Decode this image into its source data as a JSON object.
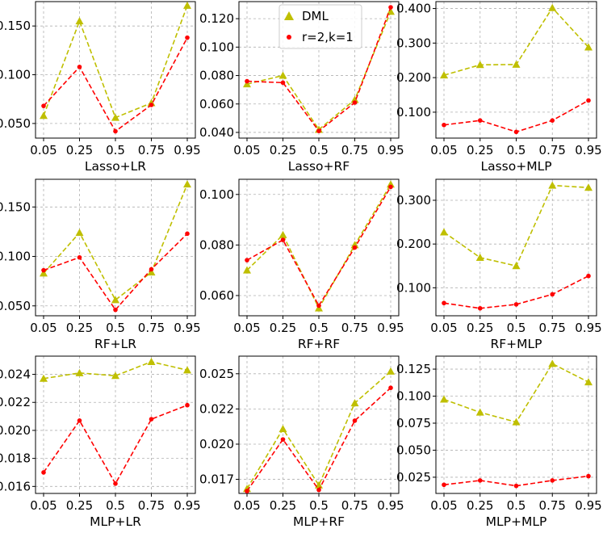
{
  "colors": {
    "dml": "#bfbf00",
    "rk": "#ff0000",
    "grid": "#b0b0b0"
  },
  "legend": {
    "placement": "top-left",
    "entries": [
      "DML",
      "r=2,k=1"
    ]
  },
  "chart_data": [
    {
      "type": "line",
      "xlabel": "Lasso+LR",
      "categories": [
        "0.05",
        "0.25",
        "0.5",
        "0.75",
        "0.95"
      ],
      "ylim": [
        0.035,
        0.175
      ],
      "yticks": [
        0.05,
        0.1,
        0.15
      ],
      "ytick_labels": [
        "0.050",
        "0.100",
        "0.150"
      ],
      "series": [
        {
          "name": "DML",
          "values": [
            0.058,
            0.155,
            0.056,
            0.071,
            0.171
          ]
        },
        {
          "name": "r=2,k=1",
          "values": [
            0.068,
            0.108,
            0.042,
            0.069,
            0.138
          ]
        }
      ]
    },
    {
      "type": "line",
      "xlabel": "Lasso+RF",
      "categories": [
        "0.05",
        "0.25",
        "0.5",
        "0.75",
        "0.95"
      ],
      "ylim": [
        0.036,
        0.132
      ],
      "yticks": [
        0.04,
        0.06,
        0.08,
        0.1,
        0.12
      ],
      "ytick_labels": [
        "0.040",
        "0.060",
        "0.080",
        "0.100",
        "0.120"
      ],
      "series": [
        {
          "name": "DML",
          "values": [
            0.074,
            0.08,
            0.042,
            0.063,
            0.125
          ]
        },
        {
          "name": "r=2,k=1",
          "values": [
            0.076,
            0.075,
            0.041,
            0.061,
            0.128
          ]
        }
      ]
    },
    {
      "type": "line",
      "xlabel": "Lasso+MLP",
      "categories": [
        "0.05",
        "0.25",
        "0.5",
        "0.75",
        "0.95"
      ],
      "ylim": [
        0.025,
        0.42
      ],
      "yticks": [
        0.1,
        0.2,
        0.3,
        0.4
      ],
      "ytick_labels": [
        "0.100",
        "0.200",
        "0.300",
        "0.400"
      ],
      "series": [
        {
          "name": "DML",
          "values": [
            0.207,
            0.237,
            0.238,
            0.402,
            0.288
          ]
        },
        {
          "name": "r=2,k=1",
          "values": [
            0.063,
            0.076,
            0.043,
            0.076,
            0.134
          ]
        }
      ]
    },
    {
      "type": "line",
      "xlabel": "RF+LR",
      "categories": [
        "0.05",
        "0.25",
        "0.5",
        "0.75",
        "0.95"
      ],
      "ylim": [
        0.04,
        0.178
      ],
      "yticks": [
        0.05,
        0.1,
        0.15
      ],
      "ytick_labels": [
        "0.050",
        "0.100",
        "0.150"
      ],
      "series": [
        {
          "name": "DML",
          "values": [
            0.083,
            0.124,
            0.056,
            0.084,
            0.173
          ]
        },
        {
          "name": "r=2,k=1",
          "values": [
            0.086,
            0.099,
            0.046,
            0.087,
            0.123
          ]
        }
      ]
    },
    {
      "type": "line",
      "xlabel": "RF+RF",
      "categories": [
        "0.05",
        "0.25",
        "0.5",
        "0.75",
        "0.95"
      ],
      "ylim": [
        0.052,
        0.106
      ],
      "yticks": [
        0.06,
        0.08,
        0.1
      ],
      "ytick_labels": [
        "0.060",
        "0.080",
        "0.100"
      ],
      "series": [
        {
          "name": "DML",
          "values": [
            0.07,
            0.084,
            0.055,
            0.08,
            0.104
          ]
        },
        {
          "name": "r=2,k=1",
          "values": [
            0.074,
            0.082,
            0.056,
            0.079,
            0.103
          ]
        }
      ]
    },
    {
      "type": "line",
      "xlabel": "RF+MLP",
      "categories": [
        "0.05",
        "0.25",
        "0.5",
        "0.75",
        "0.95"
      ],
      "ylim": [
        0.036,
        0.348
      ],
      "yticks": [
        0.1,
        0.2,
        0.3
      ],
      "ytick_labels": [
        "0.100",
        "0.200",
        "0.300"
      ],
      "series": [
        {
          "name": "DML",
          "values": [
            0.227,
            0.169,
            0.15,
            0.334,
            0.329
          ]
        },
        {
          "name": "r=2,k=1",
          "values": [
            0.065,
            0.053,
            0.062,
            0.085,
            0.127
          ]
        }
      ]
    },
    {
      "type": "line",
      "xlabel": "MLP+LR",
      "categories": [
        "0.05",
        "0.25",
        "0.5",
        "0.75",
        "0.95"
      ],
      "ylim": [
        0.0155,
        0.0253
      ],
      "yticks": [
        0.016,
        0.018,
        0.02,
        0.022,
        0.024
      ],
      "ytick_labels": [
        "0.016",
        "0.018",
        "0.020",
        "0.022",
        "0.024"
      ],
      "series": [
        {
          "name": "DML",
          "values": [
            0.0237,
            0.0241,
            0.0239,
            0.0249,
            0.0243
          ]
        },
        {
          "name": "r=2,k=1",
          "values": [
            0.017,
            0.0207,
            0.0162,
            0.0208,
            0.0218
          ]
        }
      ]
    },
    {
      "type": "line",
      "xlabel": "MLP+RF",
      "categories": [
        "0.05",
        "0.25",
        "0.5",
        "0.75",
        "0.95"
      ],
      "ylim": [
        0.0153,
        0.027
      ],
      "yticks": [
        0.0165,
        0.0195,
        0.0225,
        0.0255
      ],
      "ytick_labels": [
        "0.017",
        "0.020",
        "0.022",
        "0.025"
      ],
      "series": [
        {
          "name": "DML",
          "values": [
            0.0157,
            0.0208,
            0.016,
            0.023,
            0.0257
          ]
        },
        {
          "name": "r=2,k=1",
          "values": [
            0.0155,
            0.0199,
            0.0156,
            0.0215,
            0.0243
          ]
        }
      ]
    },
    {
      "type": "line",
      "xlabel": "MLP+MLP",
      "categories": [
        "0.05",
        "0.25",
        "0.5",
        "0.75",
        "0.95"
      ],
      "ylim": [
        0.01,
        0.137
      ],
      "yticks": [
        0.025,
        0.05,
        0.075,
        0.1,
        0.125
      ],
      "ytick_labels": [
        "0.025",
        "0.050",
        "0.075",
        "0.100",
        "0.125"
      ],
      "series": [
        {
          "name": "DML",
          "values": [
            0.097,
            0.085,
            0.076,
            0.13,
            0.113
          ]
        },
        {
          "name": "r=2,k=1",
          "values": [
            0.018,
            0.022,
            0.017,
            0.022,
            0.026
          ]
        }
      ]
    }
  ]
}
